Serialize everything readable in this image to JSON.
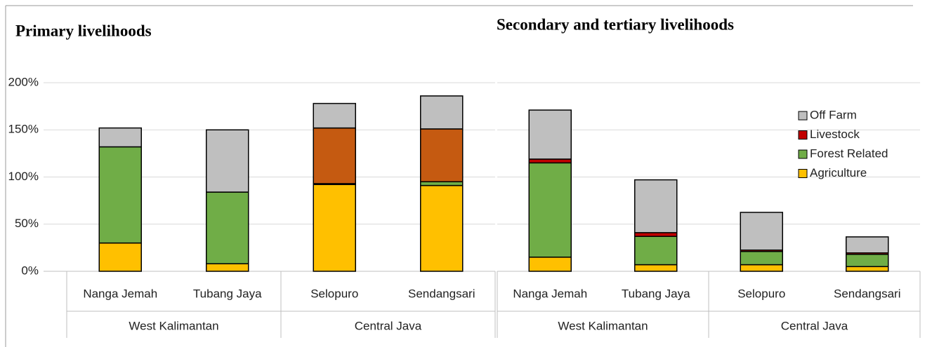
{
  "chart_data": [
    {
      "type": "bar",
      "stacked": true,
      "title": "Primary livelihoods",
      "categories": [
        "Nanga Jemah",
        "Tubang Jaya",
        "Selopuro",
        "Sendangsari"
      ],
      "groups": [
        {
          "name": "West Kalimantan",
          "count": 2
        },
        {
          "name": "Central Java",
          "count": 2
        }
      ],
      "series": [
        {
          "color": "#ffc000",
          "values": [
            30,
            8,
            92,
            91
          ]
        },
        {
          "color": "#70ad47",
          "values": [
            102,
            76,
            0,
            4
          ]
        },
        {
          "color": "#c00000",
          "values": [
            0,
            0,
            1,
            0
          ]
        },
        {
          "color": "#c55a11",
          "values": [
            0,
            0,
            59,
            56
          ]
        },
        {
          "color": "#bfbfbf",
          "values": [
            20,
            66,
            26,
            35
          ]
        }
      ],
      "ylim": [
        0,
        200
      ],
      "yticks": [
        {
          "value": 0,
          "label": "0%"
        },
        {
          "value": 50,
          "label": "50%"
        },
        {
          "value": 100,
          "label": "100%"
        },
        {
          "value": 150,
          "label": "150%"
        },
        {
          "value": 200,
          "label": "200%"
        }
      ],
      "grid": true
    },
    {
      "type": "bar",
      "stacked": true,
      "title": "Secondary and tertiary livelihoods",
      "categories": [
        "Nanga Jemah",
        "Tubang Jaya",
        "Selopuro",
        "Sendangsari"
      ],
      "groups": [
        {
          "name": "West Kalimantan",
          "count": 2
        },
        {
          "name": "Central Java",
          "count": 2
        }
      ],
      "series": [
        {
          "name": "Agriculture",
          "color": "#ffc000",
          "values": [
            15,
            7,
            7,
            5
          ]
        },
        {
          "name": "Forest Related",
          "color": "#70ad47",
          "values": [
            100,
            30,
            14,
            13
          ]
        },
        {
          "name": "Livestock",
          "color": "#c00000",
          "values": [
            4,
            4,
            1.5,
            1.5
          ]
        },
        {
          "name": "Off Farm",
          "color": "#bfbfbf",
          "values": [
            52,
            56,
            40,
            17
          ]
        }
      ],
      "ylim": [
        0,
        200
      ],
      "yticks": [
        0,
        50,
        100,
        150,
        200
      ],
      "grid": true,
      "legend": "upper right"
    }
  ]
}
